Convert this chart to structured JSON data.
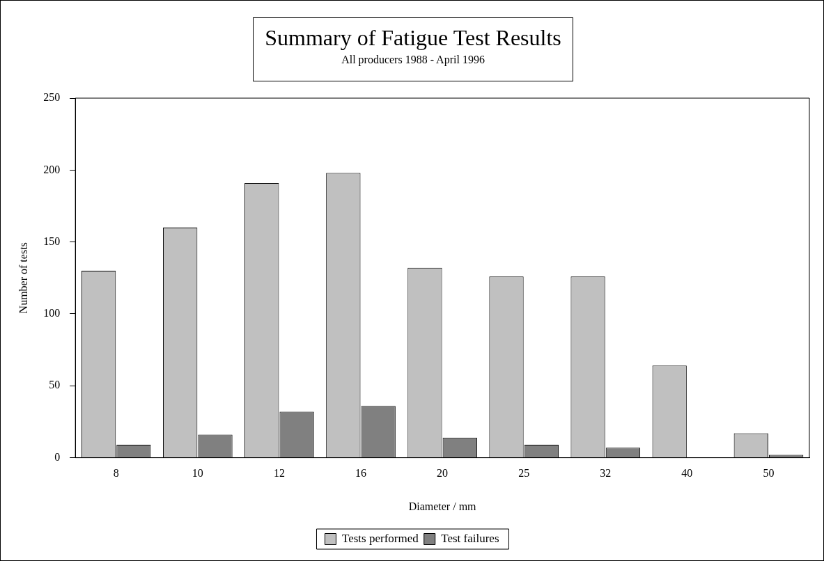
{
  "chart_data": {
    "type": "bar",
    "title": "Summary of Fatigue Test Results",
    "subtitle": "All producers 1988 - April 1996",
    "xlabel": "Diameter / mm",
    "ylabel": "Number of tests",
    "categories": [
      "8",
      "10",
      "12",
      "16",
      "20",
      "25",
      "32",
      "40",
      "50"
    ],
    "series": [
      {
        "name": "Tests performed",
        "color": "#c0c0c0",
        "values": [
          130,
          160,
          191,
          198,
          132,
          126,
          126,
          64,
          17
        ]
      },
      {
        "name": "Test failures",
        "color": "#808080",
        "values": [
          9,
          16,
          32,
          36,
          14,
          9,
          7,
          0,
          2
        ]
      }
    ],
    "ylim": [
      0,
      250
    ],
    "yticks": [
      0,
      50,
      100,
      150,
      200,
      250
    ],
    "grid": false,
    "legend": "bottom"
  }
}
